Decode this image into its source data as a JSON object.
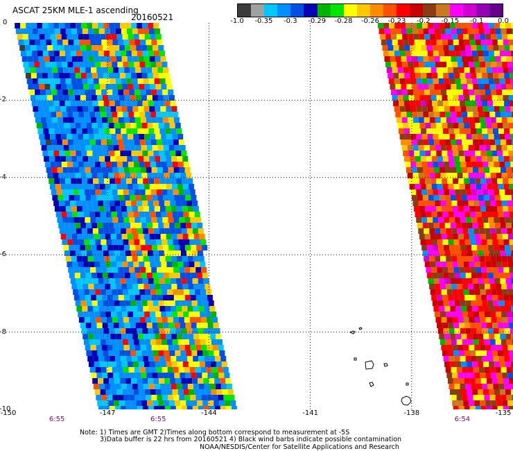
{
  "header": {
    "title": "ASCAT 25KM MLE-1 ascending",
    "date": "20160521"
  },
  "colorbar": {
    "colors": [
      "#3c3c3c",
      "#a0a0a0",
      "#00c8ff",
      "#0090ff",
      "#0050e6",
      "#0000b4",
      "#00b400",
      "#00e600",
      "#ffff00",
      "#ffc800",
      "#ff8c00",
      "#ff5000",
      "#ff0000",
      "#c80000",
      "#8c3c14",
      "#c8781e",
      "#ff00ff",
      "#d200d2",
      "#9600b4",
      "#64008c"
    ],
    "labels": [
      "-1.0",
      "-0.35",
      "-0.3",
      "-0.29",
      "-0.28",
      "-0.26",
      "-0.23",
      "-0.2",
      "-0.15",
      "-0.1",
      "0.0"
    ]
  },
  "axes": {
    "x_ticks": [
      "-150",
      "-147",
      "-144",
      "-141",
      "-138",
      "-135"
    ],
    "y_ticks": [
      "0",
      "-2",
      "-4",
      "-6",
      "-8",
      "-10"
    ],
    "lon_range": [
      -150,
      -135
    ],
    "lat_range": [
      -10,
      0
    ],
    "times": [
      {
        "lon": -148.5,
        "text": "6:55"
      },
      {
        "lon": -145.5,
        "text": "6:55"
      },
      {
        "lon": -136.5,
        "text": "6:54"
      }
    ]
  },
  "notes": [
    "Note: 1) Times are GMT 2)Times along bottom correspond to measurement at -5S",
    "3)Data buffer is 22 hrs from 20160521 4) Black wind barbs indicate possible contamination",
    "NOAA/NESDIS/Center for Satellite Applications and Research"
  ],
  "swaths": [
    {
      "name": "west-swath",
      "left_edge_top": -149.75,
      "left_edge_bottom": -147.25,
      "right_edge_top": -145.5,
      "right_edge_bottom": -143.25
    },
    {
      "name": "east-swath",
      "left_edge_top": -139.0,
      "left_edge_bottom": -136.75,
      "right_edge_top": -134.8,
      "right_edge_bottom": -134.8
    }
  ]
}
